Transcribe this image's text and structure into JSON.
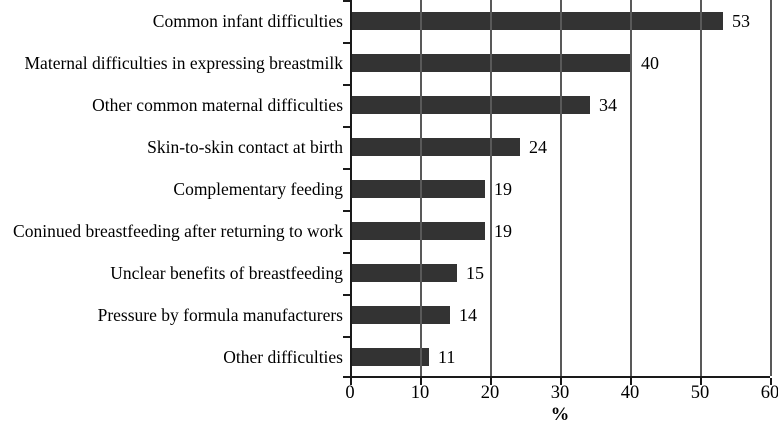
{
  "figure": {
    "background": "#ffffff"
  },
  "chart_data": {
    "type": "bar",
    "orientation": "horizontal",
    "title": "",
    "xlabel": "%",
    "ylabel": "",
    "xlim": [
      0,
      60
    ],
    "xticks": [
      0,
      10,
      20,
      30,
      40,
      50,
      60
    ],
    "grid": "vertical",
    "legend": "none",
    "categories": [
      "Common infant difficulties",
      "Maternal difficulties in expressing breastmilk",
      "Other common maternal difficulties",
      "Skin-to-skin contact at birth",
      "Complementary feeding",
      "Coninued breastfeeding after returning to work",
      "Unclear benefits of breastfeeding",
      "Pressure by formula manufacturers",
      "Other difficulties"
    ],
    "values": [
      53,
      40,
      34,
      24,
      19,
      19,
      15,
      14,
      11
    ],
    "bar_color": "#333333",
    "gridline_color": "#595959",
    "axis_color": "#1a1a1a",
    "text_color": "#000000"
  }
}
